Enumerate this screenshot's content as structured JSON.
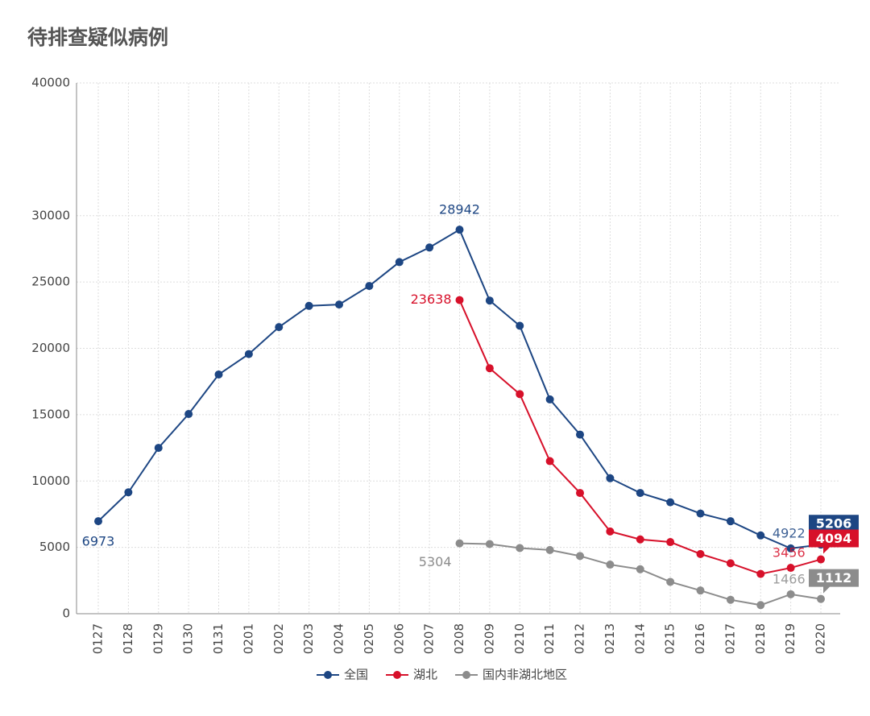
{
  "chart_data": {
    "type": "line",
    "title": "待排查疑似病例",
    "categories": [
      "0127",
      "0128",
      "0129",
      "0130",
      "0131",
      "0201",
      "0202",
      "0203",
      "0204",
      "0205",
      "0206",
      "0207",
      "0208",
      "0209",
      "0210",
      "0211",
      "0212",
      "0213",
      "0214",
      "0215",
      "0216",
      "0217",
      "0218",
      "0219",
      "0220"
    ],
    "series": [
      {
        "name": "全国",
        "color": "#1d4683",
        "values": [
          6973,
          9150,
          12500,
          15050,
          18030,
          19570,
          21600,
          23200,
          23300,
          24700,
          26500,
          27600,
          28942,
          23600,
          21700,
          16150,
          13500,
          10210,
          9100,
          8400,
          7550,
          6970,
          5900,
          4922,
          5206
        ],
        "value_labels": [
          "6973",
          null,
          null,
          null,
          null,
          null,
          null,
          null,
          null,
          null,
          null,
          null,
          "28942",
          null,
          null,
          null,
          null,
          null,
          null,
          null,
          null,
          null,
          null,
          "4922",
          "5206"
        ]
      },
      {
        "name": "湖北",
        "color": "#d7102a",
        "values": [
          null,
          null,
          null,
          null,
          null,
          null,
          null,
          null,
          null,
          null,
          null,
          null,
          23638,
          18500,
          16550,
          11500,
          9100,
          6200,
          5600,
          5400,
          4500,
          3800,
          3000,
          3456,
          4094
        ],
        "value_labels": [
          null,
          null,
          null,
          null,
          null,
          null,
          null,
          null,
          null,
          null,
          null,
          null,
          "23638",
          null,
          null,
          null,
          null,
          null,
          null,
          null,
          null,
          null,
          null,
          "3456",
          "4094"
        ]
      },
      {
        "name": "国内非湖北地区",
        "color": "#8c8c8c",
        "values": [
          null,
          null,
          null,
          null,
          null,
          null,
          null,
          null,
          null,
          null,
          null,
          null,
          5304,
          5250,
          4950,
          4800,
          4350,
          3700,
          3350,
          2400,
          1750,
          1050,
          650,
          1466,
          1112
        ],
        "value_labels": [
          null,
          null,
          null,
          null,
          null,
          null,
          null,
          null,
          null,
          null,
          null,
          null,
          "5304",
          null,
          null,
          null,
          null,
          null,
          null,
          null,
          null,
          null,
          null,
          "1466",
          "1112"
        ]
      }
    ],
    "ylim": [
      0,
      40000
    ],
    "yticks": [
      0,
      5000,
      10000,
      15000,
      20000,
      25000,
      30000,
      40000
    ],
    "grid": true,
    "legend": "bottom"
  }
}
